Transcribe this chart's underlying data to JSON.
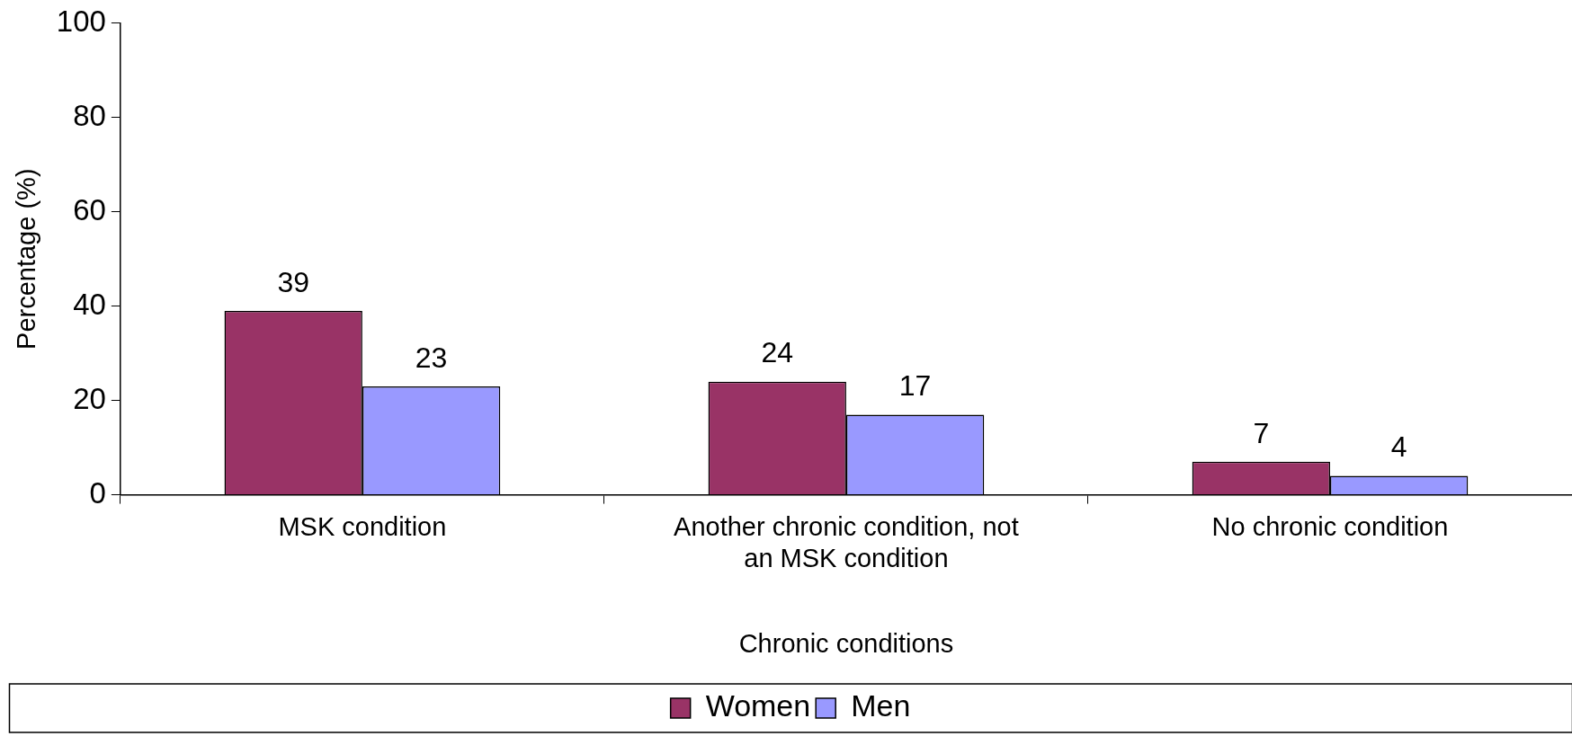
{
  "chart_data": {
    "type": "bar",
    "categories": [
      "MSK condition",
      "Another chronic condition, not an MSK condition",
      "No chronic condition"
    ],
    "series": [
      {
        "name": "Women",
        "color": "#993366",
        "values": [
          39,
          24,
          7
        ]
      },
      {
        "name": "Men",
        "color": "#9999ff",
        "values": [
          23,
          17,
          4
        ]
      }
    ],
    "xlabel": "Chronic conditions",
    "ylabel": "Percentage (%)",
    "ylim": [
      0,
      100
    ],
    "yticks": [
      0,
      20,
      40,
      60,
      80,
      100
    ],
    "grid": false,
    "legend": "bottom",
    "data_labels": true
  }
}
